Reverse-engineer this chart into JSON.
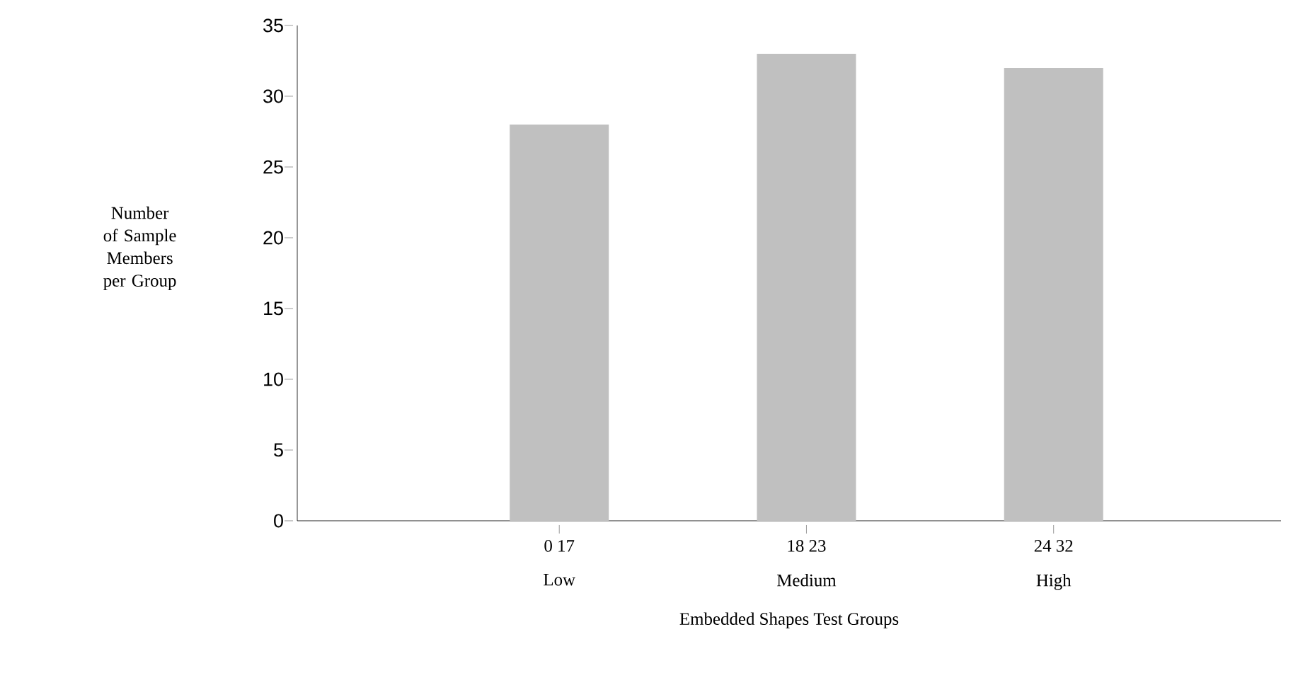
{
  "chart_data": {
    "type": "bar",
    "xlabel": "Embedded Shapes Test Groups",
    "ylabel": "Number of Sample Members per Group",
    "categories": [
      "0 17",
      "18 23",
      "24 32"
    ],
    "annotations": [
      "Low",
      "Medium",
      "High"
    ],
    "values": [
      28,
      33,
      32
    ],
    "color": "#c0c0c0",
    "ylim": [
      0,
      35
    ],
    "yticks": [
      0,
      5,
      10,
      15,
      20,
      25,
      30,
      35
    ],
    "grid": false
  }
}
